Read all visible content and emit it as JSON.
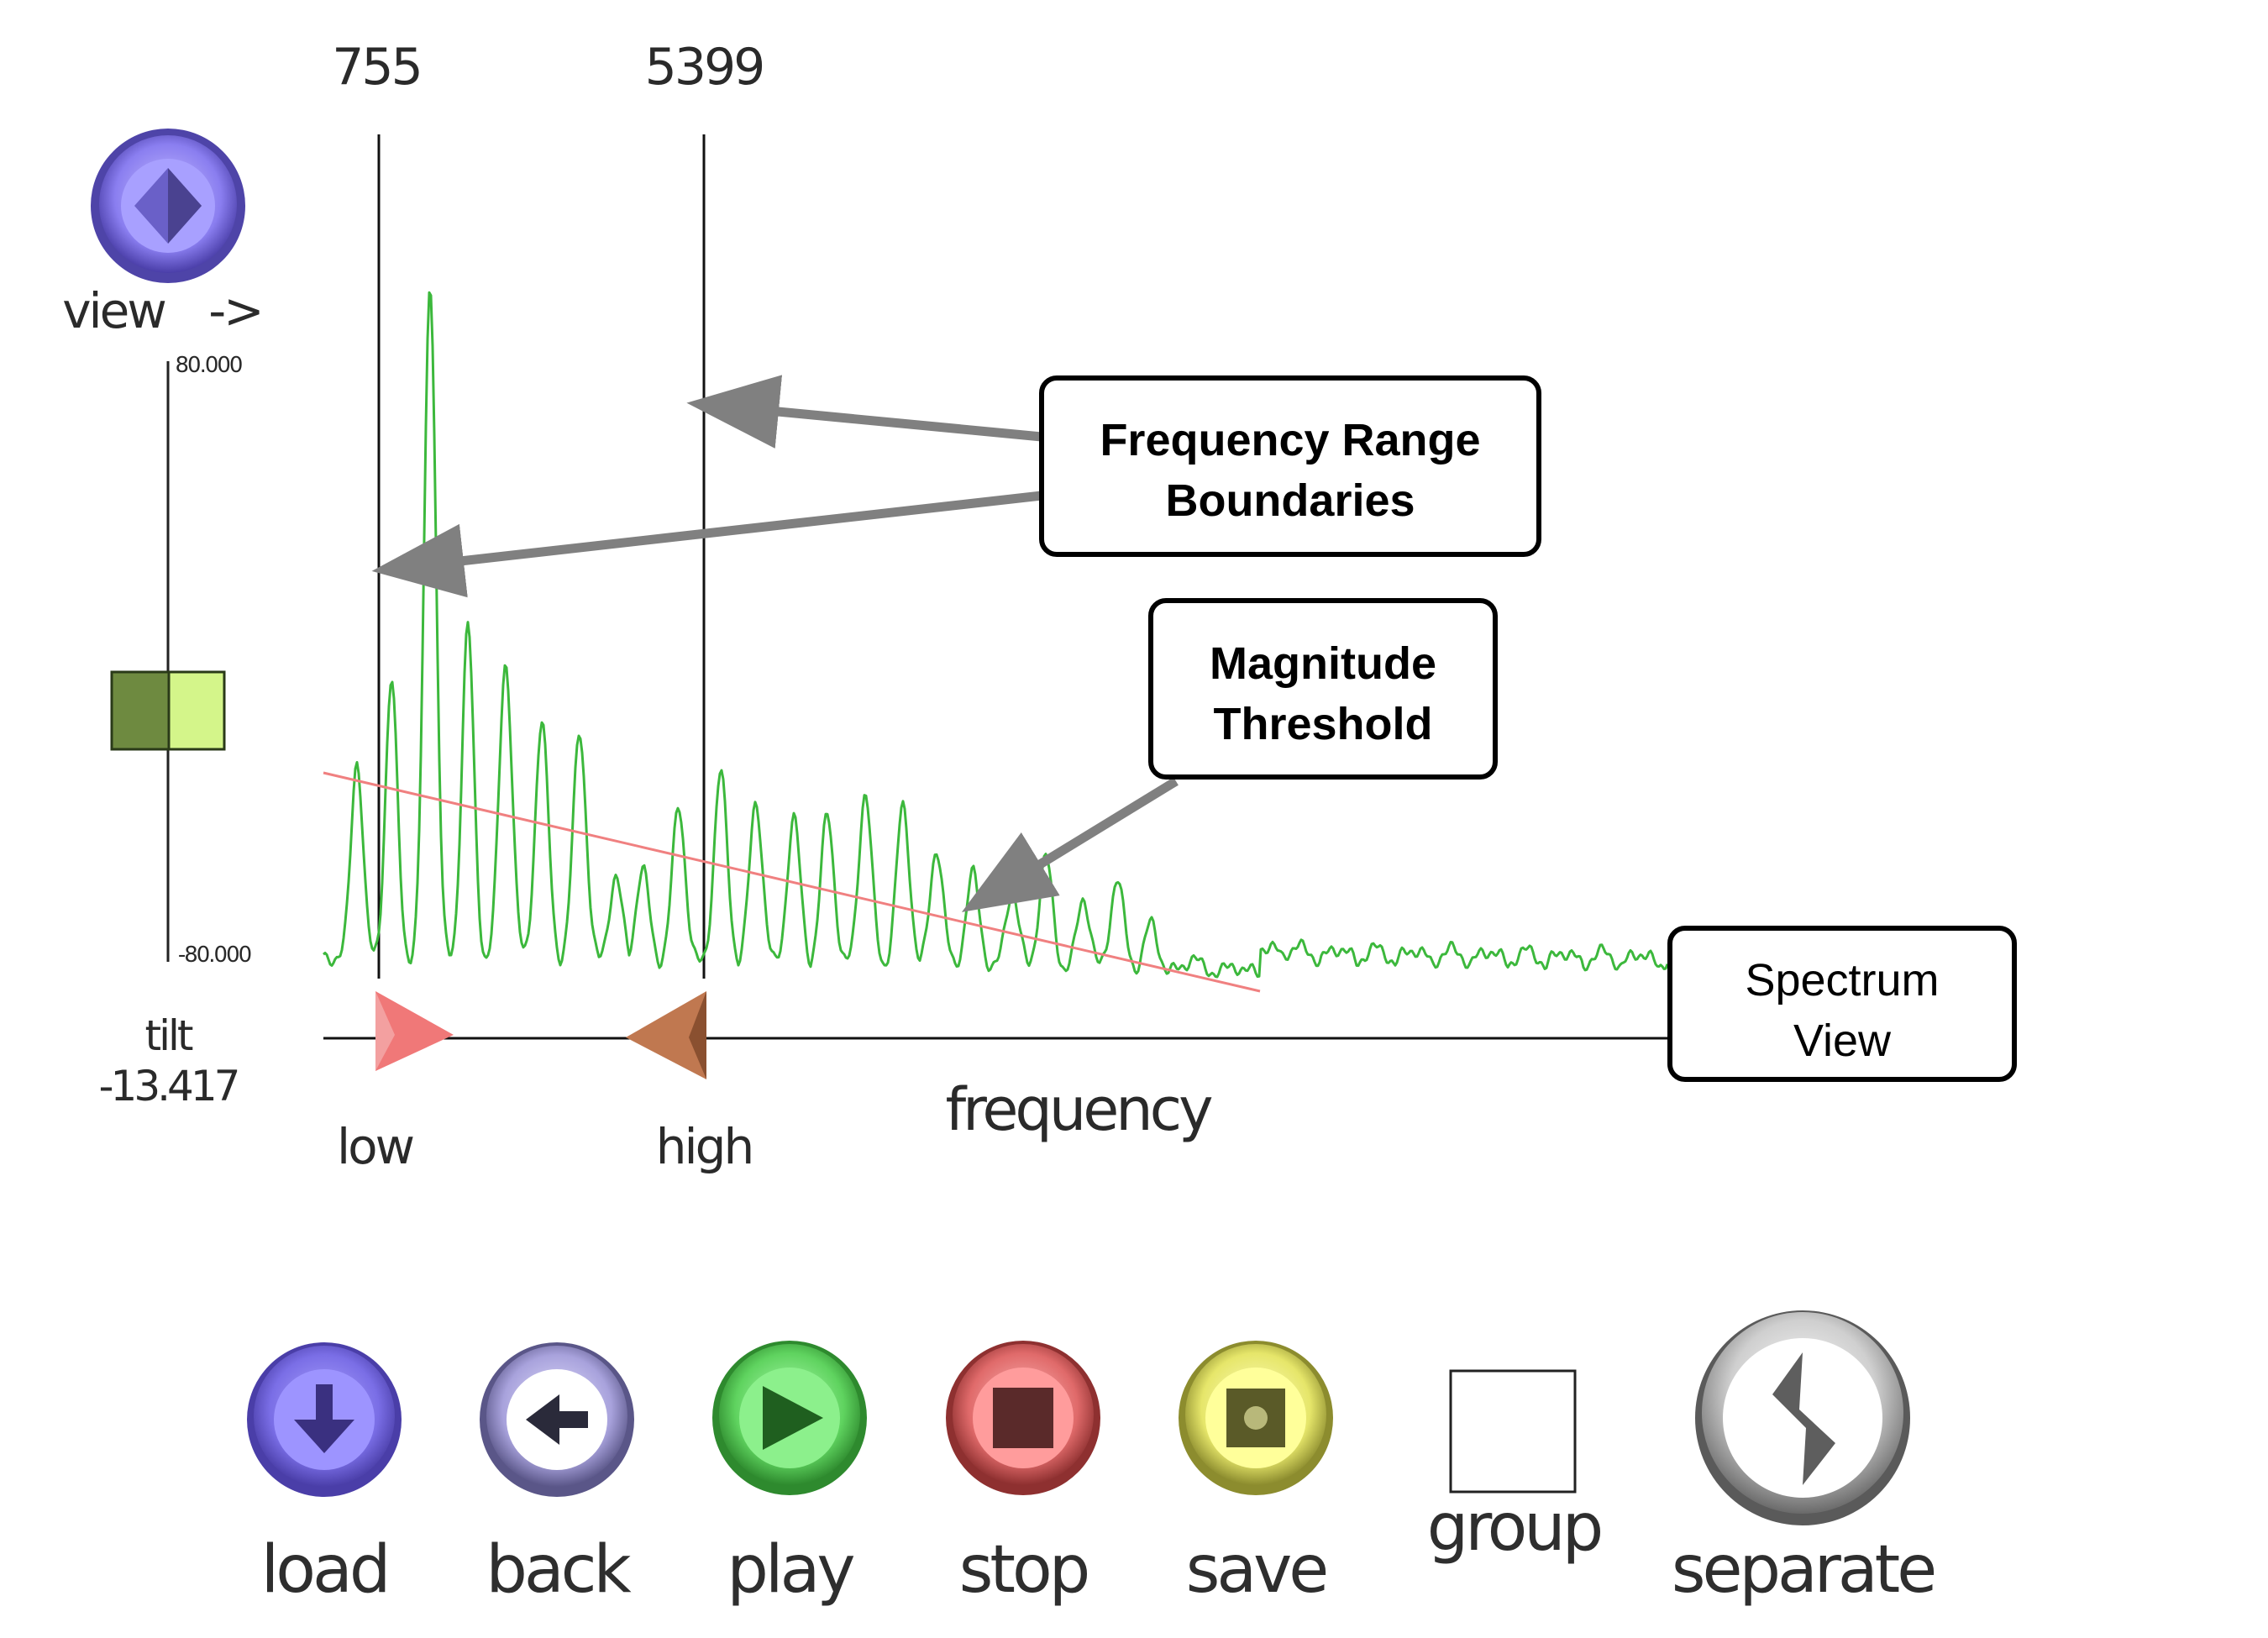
{
  "markers": {
    "low_value": "755",
    "high_value": "5399",
    "low_label": "low",
    "high_label": "high"
  },
  "view_control": {
    "label": "view",
    "arrow": "->",
    "icon": "diamond-icon"
  },
  "tilt_slider": {
    "max_label": "80.000",
    "min_label": "-80.000",
    "label": "tilt",
    "value": "-13.417"
  },
  "axis": {
    "xlabel": "frequency"
  },
  "annotations": {
    "range_line1": "Frequency Range",
    "range_line2": "Boundaries",
    "threshold_line1": "Magnitude",
    "threshold_line2": "Threshold",
    "spectrum_line1": "Spectrum",
    "spectrum_line2": "View"
  },
  "buttons": {
    "load": "load",
    "back": "back",
    "play": "play",
    "stop": "stop",
    "save": "save",
    "group": "group",
    "separate": "separate"
  },
  "colors": {
    "spectrum": "#3cb83c",
    "threshold": "#f08080",
    "low_marker": "#f07070",
    "high_marker": "#c87a55",
    "load": "#8a80f0",
    "back": "#b8b4ee",
    "play": "#70e070",
    "stop": "#f07878",
    "save": "#f0f07a",
    "separate": "#d8d8d8"
  }
}
